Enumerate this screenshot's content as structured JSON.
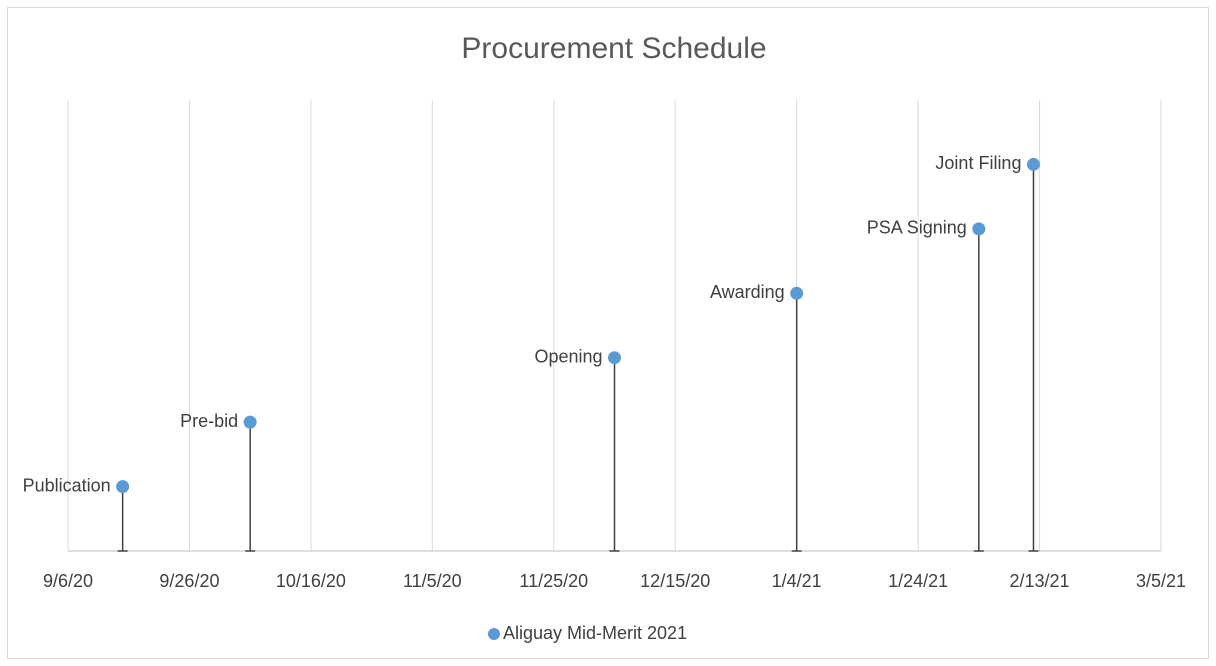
{
  "chart_data": {
    "type": "scatter",
    "title": "Procurement Schedule",
    "series": [
      {
        "name": "Aliguay Mid-Merit 2021",
        "color": "#5b9bd5",
        "x": [
          "2020-09-15",
          "2020-10-06",
          "2020-12-05",
          "2021-01-04",
          "2021-02-03",
          "2021-02-12"
        ],
        "values": [
          1,
          2,
          3,
          4,
          5,
          6
        ],
        "point_labels": [
          "Publication",
          "Pre-bid",
          "Opening",
          "Awarding",
          "PSA Signing",
          "Joint Filing"
        ]
      }
    ],
    "xlim": [
      "2020-09-06",
      "2021-03-05"
    ],
    "xticks": [
      {
        "value": "2020-09-06",
        "label": "9/6/20"
      },
      {
        "value": "2020-09-26",
        "label": "9/26/20"
      },
      {
        "value": "2020-10-16",
        "label": "10/16/20"
      },
      {
        "value": "2020-11-05",
        "label": "11/5/20"
      },
      {
        "value": "2020-11-25",
        "label": "11/25/20"
      },
      {
        "value": "2020-12-15",
        "label": "12/15/20"
      },
      {
        "value": "2021-01-04",
        "label": "1/4/21"
      },
      {
        "value": "2021-01-24",
        "label": "1/24/21"
      },
      {
        "value": "2021-02-13",
        "label": "2/13/21"
      },
      {
        "value": "2021-03-05",
        "label": "3/5/21"
      }
    ],
    "ylim": [
      0,
      7
    ],
    "grid": true,
    "drop_lines": true,
    "legend": "bottom"
  }
}
